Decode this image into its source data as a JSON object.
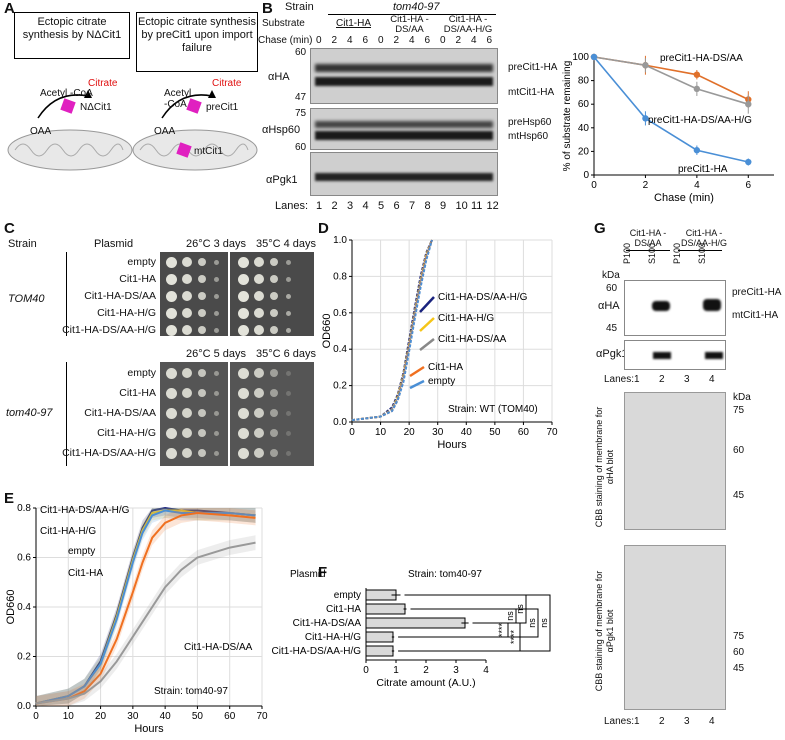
{
  "panels": {
    "A": "A",
    "B": "B",
    "C": "C",
    "D": "D",
    "E": "E",
    "F": "F",
    "G": "G"
  },
  "panelA": {
    "box1": "Ectopic citrate synthesis by NΔCit1",
    "box2": "Ectopic citrate synthesis by preCit1 upon import failure",
    "acetyl": "Acetyl -CoA",
    "oaa": "OAA",
    "citrate": "Citrate",
    "ndcit1": "NΔCit1",
    "precit1": "preCit1",
    "mtcit1": "mtCit1"
  },
  "panelB": {
    "strain_label": "Strain",
    "strain": "tom40-97",
    "substrate_label": "Substrate",
    "chase_label": "Chase (min)",
    "substrates": [
      "Cit1-HA",
      "Cit1-HA -DS/AA",
      "Cit1-HA -DS/AA-H/G"
    ],
    "chase_times": [
      "0",
      "2",
      "4",
      "6",
      "0",
      "2",
      "4",
      "6",
      "0",
      "2",
      "4",
      "6"
    ],
    "blots": [
      "αHA",
      "αHsp60",
      "αPgk1"
    ],
    "mw_ha": [
      "60",
      "47"
    ],
    "mw_hsp": [
      "75",
      "60"
    ],
    "bands_ha": [
      "preCit1-HA",
      "mtCit1-HA"
    ],
    "bands_hsp": [
      "preHsp60",
      "mtHsp60"
    ],
    "lanes_label": "Lanes:",
    "lanes": [
      "1",
      "2",
      "3",
      "4",
      "5",
      "6",
      "7",
      "8",
      "9",
      "10",
      "11",
      "12"
    ]
  },
  "panelC": {
    "strain_header": "Strain",
    "plasmid_header": "Plasmid",
    "top_conditions": [
      "26°C 3 days",
      "35°C 4 days"
    ],
    "bottom_conditions": [
      "26°C 5 days",
      "35°C 6 days"
    ],
    "strain_top": "TOM40",
    "strain_bottom": "tom40-97",
    "plasmids": [
      "empty",
      "Cit1-HA",
      "Cit1-HA-DS/AA",
      "Cit1-HA-H/G",
      "Cit1-HA-DS/AA-H/G"
    ]
  },
  "panelG": {
    "groups": [
      "Cit1-HA -DS/AA",
      "Cit1-HA -DS/AA-H/G"
    ],
    "fractions": [
      "P100",
      "S100",
      "P100",
      "S100"
    ],
    "kda": "kDa",
    "mw_ha": [
      "60",
      "45"
    ],
    "blots": [
      "αHA",
      "αPgk1"
    ],
    "bands": [
      "preCit1-HA",
      "mtCit1-HA"
    ],
    "lanes_label": "Lanes:",
    "lanes": [
      "1",
      "2",
      "3",
      "4"
    ],
    "cbb1": "CBB staining of membrane for αHA blot",
    "cbb2": "CBB staining of membrane for αPgk1 blot",
    "cbb1_mw": [
      "kDa",
      "75",
      "60",
      "45"
    ],
    "cbb2_mw": [
      "75",
      "60",
      "45"
    ]
  },
  "chart_data": [
    {
      "id": "B-right",
      "type": "line",
      "title": "",
      "xlabel": "Chase (min)",
      "ylabel": "% of substrate remaining",
      "xlim": [
        0,
        7
      ],
      "ylim": [
        0,
        100
      ],
      "xticks": [
        0,
        2,
        4,
        6
      ],
      "yticks": [
        0,
        20,
        40,
        60,
        80,
        100
      ],
      "x": [
        0,
        2,
        4,
        6
      ],
      "series": [
        {
          "name": "preCit1-HA-DS/AA",
          "color": "#e0702a",
          "values": [
            100,
            93,
            85,
            64
          ],
          "err": [
            0,
            8,
            4,
            7
          ]
        },
        {
          "name": "preCit1-HA-DS/AA-H/G",
          "color": "#999999",
          "values": [
            100,
            93,
            73,
            60
          ],
          "err": [
            0,
            6,
            6,
            8
          ]
        },
        {
          "name": "preCit1-HA",
          "color": "#4a8fd6",
          "values": [
            100,
            48,
            21,
            11
          ],
          "err": [
            0,
            6,
            4,
            3
          ]
        }
      ]
    },
    {
      "id": "D",
      "type": "line",
      "xlabel": "Hours",
      "ylabel": "OD660",
      "annotation": "Strain: WT (TOM40)",
      "xlim": [
        0,
        70
      ],
      "ylim": [
        0,
        1.0
      ],
      "xticks": [
        0,
        10,
        20,
        30,
        40,
        50,
        60,
        70
      ],
      "yticks": [
        0,
        0.2,
        0.4,
        0.6,
        0.8,
        1.0
      ],
      "series": [
        {
          "name": "Cit1-HA-DS/AA-H/G",
          "color": "#1a237e",
          "x": [
            0,
            10,
            14,
            16,
            18,
            20,
            22,
            24,
            26,
            28
          ],
          "values": [
            0.01,
            0.03,
            0.08,
            0.15,
            0.27,
            0.45,
            0.63,
            0.8,
            0.93,
            1.0
          ]
        },
        {
          "name": "Cit1-HA-H/G",
          "color": "#f5c518",
          "x": [
            0,
            10,
            14,
            16,
            18,
            20,
            22,
            24,
            26,
            28
          ],
          "values": [
            0.01,
            0.03,
            0.07,
            0.14,
            0.26,
            0.43,
            0.61,
            0.78,
            0.92,
            1.0
          ]
        },
        {
          "name": "Cit1-HA-DS/AA",
          "color": "#888888",
          "x": [
            0,
            10,
            14,
            16,
            18,
            20,
            22,
            24,
            26,
            28
          ],
          "values": [
            0.01,
            0.03,
            0.07,
            0.13,
            0.25,
            0.42,
            0.6,
            0.77,
            0.91,
            1.0
          ]
        },
        {
          "name": "Cit1-HA",
          "color": "#f07020",
          "x": [
            0,
            10,
            14,
            16,
            18,
            20,
            22,
            24,
            26,
            28
          ],
          "values": [
            0.01,
            0.03,
            0.06,
            0.12,
            0.23,
            0.4,
            0.58,
            0.75,
            0.9,
            1.0
          ]
        },
        {
          "name": "empty",
          "color": "#4a8fd6",
          "x": [
            0,
            10,
            14,
            16,
            18,
            20,
            22,
            24,
            26,
            28
          ],
          "values": [
            0.01,
            0.03,
            0.06,
            0.12,
            0.22,
            0.39,
            0.57,
            0.74,
            0.89,
            1.0
          ]
        }
      ]
    },
    {
      "id": "E",
      "type": "line",
      "xlabel": "Hours",
      "ylabel": "OD660",
      "annotation": "Strain: tom40-97",
      "xlim": [
        0,
        70
      ],
      "ylim": [
        0,
        0.8
      ],
      "xticks": [
        0,
        10,
        20,
        30,
        40,
        50,
        60,
        70
      ],
      "yticks": [
        0,
        0.2,
        0.4,
        0.6,
        0.8
      ],
      "series": [
        {
          "name": "Cit1-HA-DS/AA-H/G",
          "color": "#1a237e",
          "x": [
            0,
            10,
            15,
            20,
            25,
            30,
            33,
            36,
            40,
            45,
            50,
            60,
            68
          ],
          "values": [
            0.01,
            0.04,
            0.08,
            0.18,
            0.37,
            0.6,
            0.72,
            0.79,
            0.8,
            0.79,
            0.79,
            0.78,
            0.77
          ]
        },
        {
          "name": "Cit1-HA-H/G",
          "color": "#f5c518",
          "x": [
            0,
            10,
            15,
            20,
            25,
            30,
            33,
            36,
            40,
            45,
            50,
            60,
            68
          ],
          "values": [
            0.01,
            0.04,
            0.08,
            0.17,
            0.36,
            0.59,
            0.71,
            0.78,
            0.79,
            0.79,
            0.78,
            0.78,
            0.77
          ]
        },
        {
          "name": "empty",
          "color": "#4a8fd6",
          "x": [
            0,
            10,
            15,
            20,
            25,
            30,
            33,
            36,
            40,
            45,
            50,
            60,
            68
          ],
          "values": [
            0.01,
            0.04,
            0.08,
            0.17,
            0.35,
            0.58,
            0.7,
            0.77,
            0.79,
            0.78,
            0.78,
            0.78,
            0.77
          ]
        },
        {
          "name": "Cit1-HA",
          "color": "#f07020",
          "x": [
            0,
            10,
            15,
            20,
            25,
            30,
            33,
            36,
            40,
            45,
            50,
            60,
            68
          ],
          "values": [
            0.01,
            0.03,
            0.06,
            0.13,
            0.27,
            0.46,
            0.58,
            0.68,
            0.74,
            0.77,
            0.78,
            0.77,
            0.76
          ]
        },
        {
          "name": "Cit1-HA-DS/AA",
          "color": "#999999",
          "x": [
            0,
            10,
            15,
            20,
            25,
            30,
            35,
            40,
            45,
            50,
            60,
            68
          ],
          "values": [
            0.01,
            0.03,
            0.05,
            0.1,
            0.18,
            0.28,
            0.38,
            0.48,
            0.55,
            0.6,
            0.64,
            0.66
          ]
        }
      ]
    },
    {
      "id": "F",
      "type": "bar",
      "title": "Strain: tom40-97",
      "header": "Plasmid",
      "xlabel": "Citrate amount (A.U.)",
      "xlim": [
        0,
        4
      ],
      "xticks": [
        0,
        1,
        2,
        3,
        4
      ],
      "categories": [
        "empty",
        "Cit1-HA",
        "Cit1-HA-DS/AA",
        "Cit1-HA-H/G",
        "Cit1-HA-DS/AA-H/G"
      ],
      "values": [
        1.0,
        1.3,
        3.3,
        0.9,
        0.9
      ],
      "err": [
        0.15,
        0.05,
        0.12,
        0.04,
        0.04
      ],
      "significance": [
        {
          "pair": "empty vs Cit1-HA-DS/AA",
          "label": "ns"
        },
        {
          "pair": "Cit1-HA vs Cit1-HA-DS/AA",
          "label": "ns"
        },
        {
          "pair": "Cit1-HA-DS/AA vs Cit1-HA-H/G",
          "label": "****"
        },
        {
          "pair": "Cit1-HA-DS/AA vs Cit1-HA-DS/AA-H/G",
          "label": "****"
        },
        {
          "pair": "Cit1-HA vs Cit1-HA-H/G",
          "label": "ns"
        },
        {
          "pair": "empty vs Cit1-HA-DS/AA-H/G",
          "label": "ns"
        }
      ]
    }
  ]
}
